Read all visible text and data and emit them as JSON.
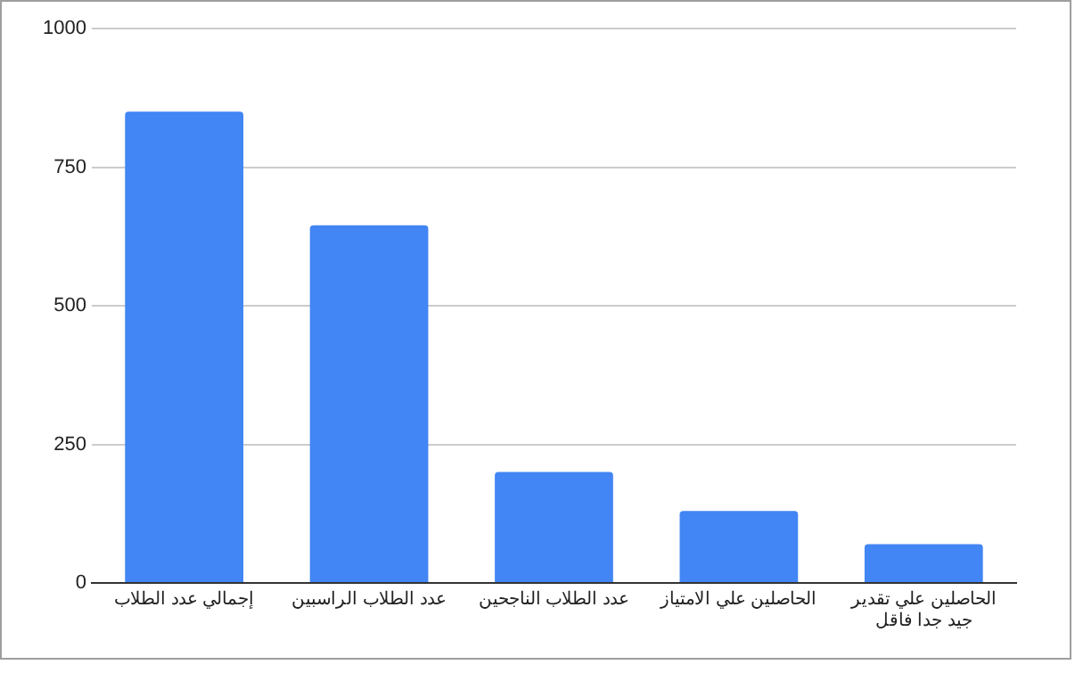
{
  "chart_data": {
    "type": "bar",
    "categories": [
      "إجمالي عدد الطلاب",
      "عدد الطلاب الراسبين",
      "عدد الطلاب الناجحين",
      "الحاصلين علي الامتياز",
      "الحاصلين علي تقدير جيد جدا فاقل"
    ],
    "values": [
      850,
      645,
      200,
      130,
      70
    ],
    "color": "#4285f4",
    "ylim": [
      0,
      1000
    ],
    "yticks": [
      0,
      250,
      500,
      750,
      1000
    ],
    "grid": "y",
    "legend": false
  }
}
